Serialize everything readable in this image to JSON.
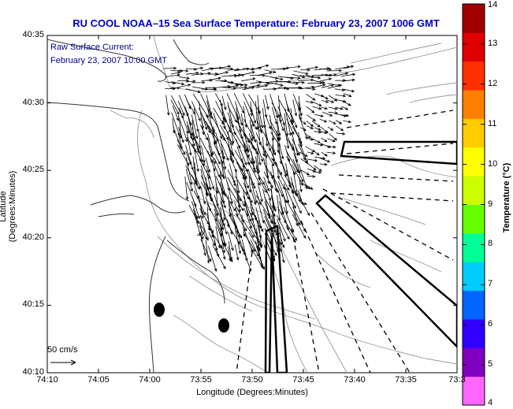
{
  "title": "RU COOL  NOAA–15  Sea Surface Temperature:  February 23, 2007 1006 GMT",
  "overlay": {
    "line1": "Raw Surface Current:",
    "line2": "February 23, 2007 10:00 GMT"
  },
  "scale_label": "50 cm/s",
  "xaxis": {
    "label": "Longitude (Degrees:Minutes)",
    "ticks": [
      "74:10",
      "74:05",
      "74:00",
      "73:55",
      "73:50",
      "73:45",
      "73:40",
      "73:35",
      "73:3"
    ]
  },
  "yaxis": {
    "label": "Latitude (Degrees:Minutes)",
    "ticks": [
      "40:35",
      "40:30",
      "40:25",
      "40:20",
      "40:15",
      "40:10"
    ]
  },
  "colorbar": {
    "label": "Temperature (°C)",
    "ticks": [
      "14",
      "13",
      "12",
      "11",
      "10",
      "9",
      "8",
      "7",
      "6",
      "5",
      "4"
    ],
    "colors": [
      "#ff66ff",
      "#8000c0",
      "#3000ff",
      "#0066ff",
      "#00ccff",
      "#00ff99",
      "#66ff00",
      "#ccff00",
      "#ffff00",
      "#ffcc00",
      "#ff8000",
      "#ff3000",
      "#e00000",
      "#a00000"
    ]
  }
}
